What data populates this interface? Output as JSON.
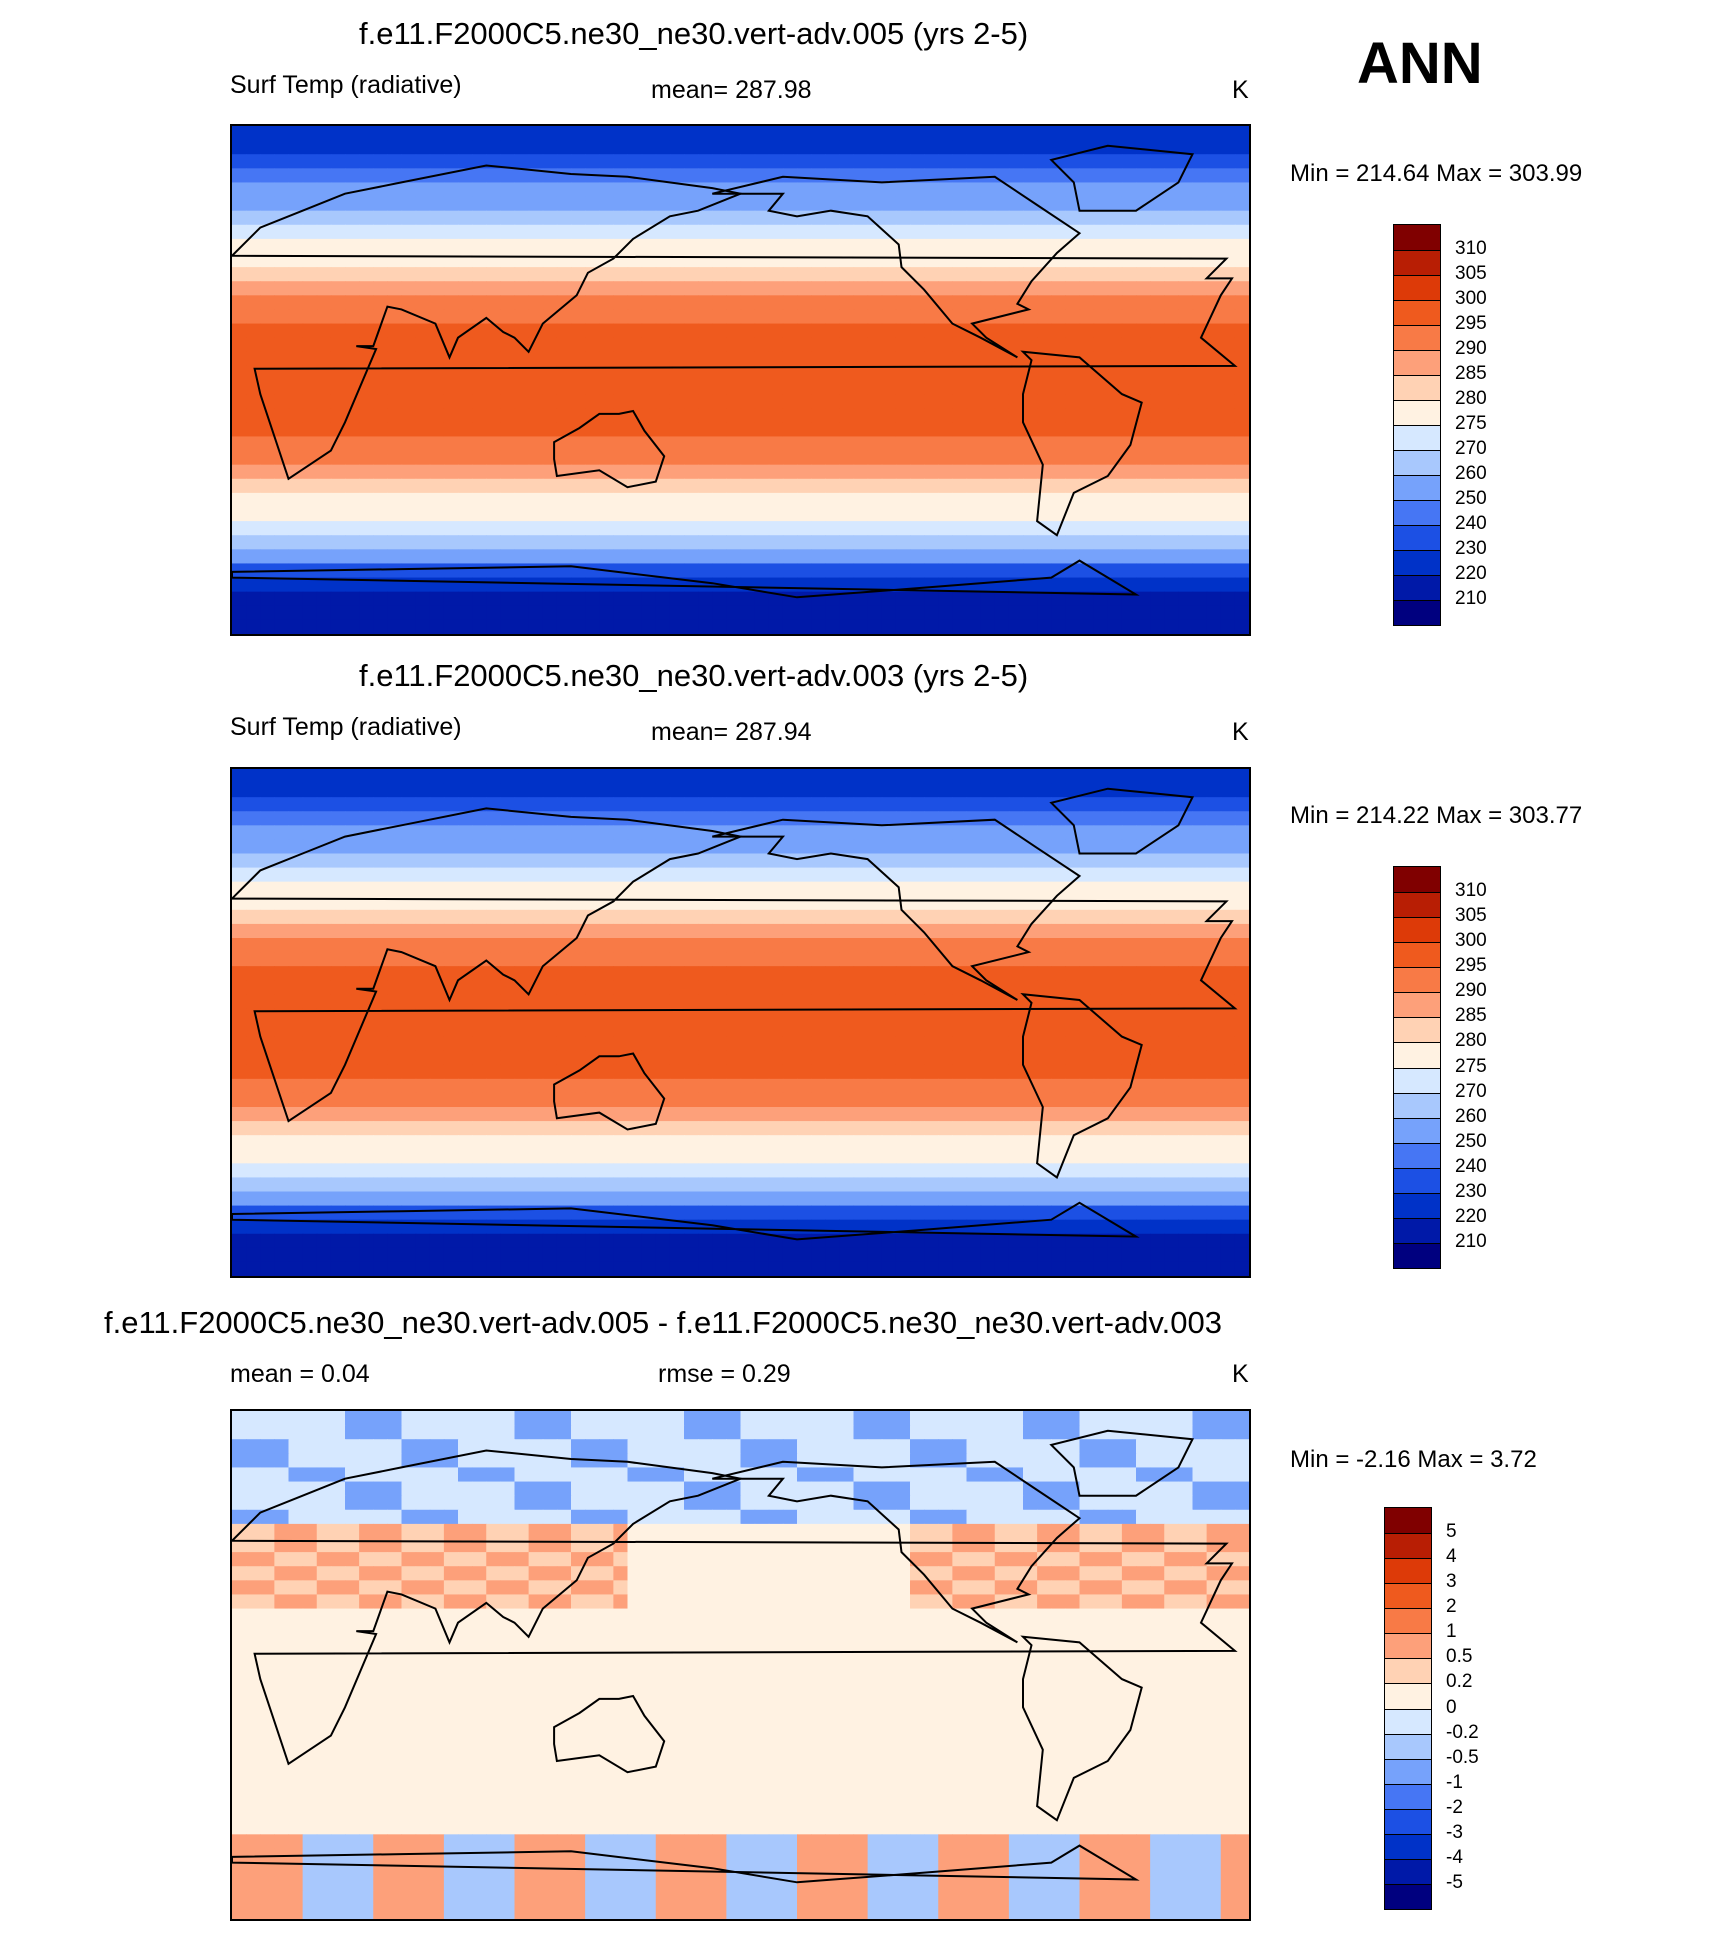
{
  "season": "ANN",
  "chart_data": [
    {
      "type": "heatmap",
      "title": "f.e11.F2000C5.ne30_ne30.vert-adv.005 (yrs 2-5)",
      "left_label": "Surf Temp (radiative)",
      "center_label": "mean= 287.98",
      "right_label": "K",
      "minmax_label": "Min = 214.64 Max = 303.99",
      "mean": 287.98,
      "min": 214.64,
      "max": 303.99,
      "levels": [
        "210",
        "220",
        "230",
        "240",
        "250",
        "260",
        "270",
        "275",
        "280",
        "285",
        "290",
        "295",
        "300",
        "305",
        "310"
      ],
      "colors": [
        "#00007f",
        "#0019a8",
        "#0032c8",
        "#1c50e4",
        "#4676f4",
        "#76a2fb",
        "#a8c8fd",
        "#d6e8ff",
        "#fff2e2",
        "#ffd2b4",
        "#fda07a",
        "#f87a46",
        "#ef5a1e",
        "#dd3a08",
        "#b81e04",
        "#800000"
      ]
    },
    {
      "type": "heatmap",
      "title": "f.e11.F2000C5.ne30_ne30.vert-adv.003 (yrs 2-5)",
      "left_label": "Surf Temp (radiative)",
      "center_label": "mean= 287.94",
      "right_label": "K",
      "minmax_label": "Min = 214.22 Max = 303.77",
      "mean": 287.94,
      "min": 214.22,
      "max": 303.77,
      "levels": [
        "210",
        "220",
        "230",
        "240",
        "250",
        "260",
        "270",
        "275",
        "280",
        "285",
        "290",
        "295",
        "300",
        "305",
        "310"
      ],
      "colors": [
        "#00007f",
        "#0019a8",
        "#0032c8",
        "#1c50e4",
        "#4676f4",
        "#76a2fb",
        "#a8c8fd",
        "#d6e8ff",
        "#fff2e2",
        "#ffd2b4",
        "#fda07a",
        "#f87a46",
        "#ef5a1e",
        "#dd3a08",
        "#b81e04",
        "#800000"
      ]
    },
    {
      "type": "heatmap",
      "title": "f.e11.F2000C5.ne30_ne30.vert-adv.005 - f.e11.F2000C5.ne30_ne30.vert-adv.003",
      "left_label": "mean =   0.04",
      "center_label": "rmse =   0.29",
      "right_label": "K",
      "minmax_label": "Min =  -2.16 Max =   3.72",
      "mean": 0.04,
      "rmse": 0.29,
      "min": -2.16,
      "max": 3.72,
      "levels": [
        "-5",
        "-4",
        "-3",
        "-2",
        "-1",
        "-0.5",
        "-0.2",
        "0",
        "0.2",
        "0.5",
        "1",
        "2",
        "3",
        "4",
        "5"
      ],
      "colors": [
        "#00007f",
        "#0019a8",
        "#0032c8",
        "#1c50e4",
        "#4676f4",
        "#76a2fb",
        "#a8c8fd",
        "#d6e8ff",
        "#fff2e2",
        "#ffd2b4",
        "#fda07a",
        "#f87a46",
        "#ef5a1e",
        "#dd3a08",
        "#b81e04",
        "#800000"
      ]
    }
  ]
}
